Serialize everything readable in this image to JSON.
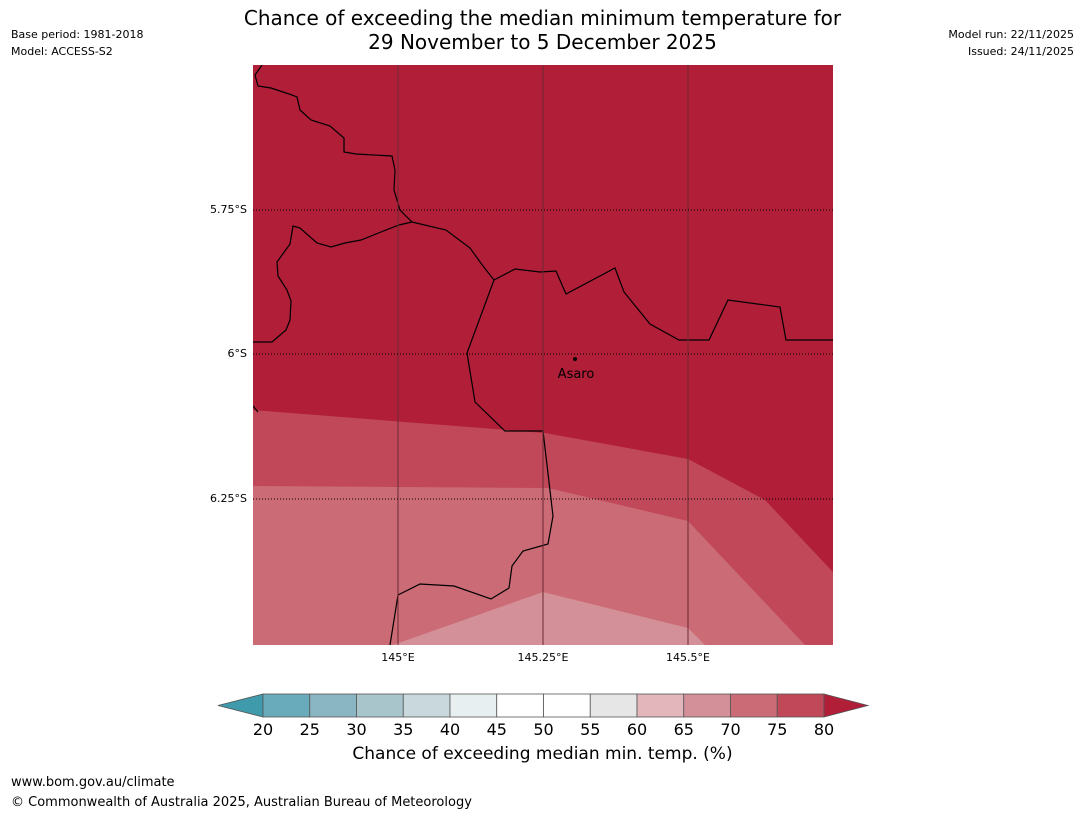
{
  "header": {
    "title_line1": "Chance of exceeding the median minimum temperature for",
    "title_line2": "29 November to 5 December 2025",
    "base_period": "Base period: 1981-2018",
    "model": "Model: ACCESS-S2",
    "model_run": "Model run: 22/11/2025",
    "issued": "Issued: 24/11/2025"
  },
  "map": {
    "latitude_labels": [
      "5.75°S",
      "6°S",
      "6.25°S"
    ],
    "longitude_labels": [
      "145°E",
      "145.25°E",
      "145.5°E"
    ],
    "place": {
      "name": "Asaro",
      "lon": 145.32,
      "lat": -6.01
    },
    "colors": {
      "gt80": "#b01e38",
      "75_80": "#c04858",
      "70_75": "#cb6b76",
      "65_70": "#d49098",
      "60_65": "#e2b6ba"
    }
  },
  "legend": {
    "ticks": [
      "20",
      "25",
      "30",
      "35",
      "40",
      "45",
      "50",
      "55",
      "60",
      "65",
      "70",
      "75",
      "80"
    ],
    "colors": [
      "#3f9aab",
      "#6aabbb",
      "#8ab5c3",
      "#a8c5cc",
      "#c8d8dc",
      "#e8eff1",
      "#ffffff",
      "#ffffff",
      "#e6e6e6",
      "#e2b6ba",
      "#d49098",
      "#cb6b76",
      "#c04858",
      "#b01e38"
    ],
    "label": "Chance of exceeding median min. temp. (%)"
  },
  "footer": {
    "url": "www.bom.gov.au/climate",
    "copyright": "© Commonwealth of Australia 2025, Australian Bureau of Meteorology"
  }
}
